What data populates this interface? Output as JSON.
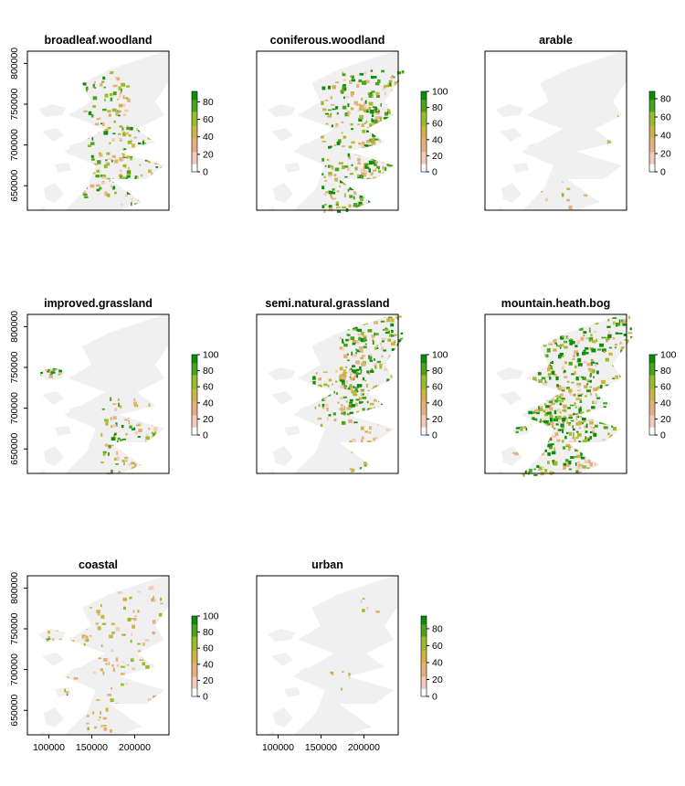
{
  "chart_data": {
    "type": "heatmap",
    "grid": false,
    "colors": {
      "land": "#f0f0f0",
      "scale": [
        "#ffffff",
        "#f2ccb8",
        "#e6b07a",
        "#cdb34a",
        "#9bbb2c",
        "#4aa31c",
        "#0f8c0a"
      ]
    },
    "x_ticks": [
      "100000",
      "150000",
      "200000"
    ],
    "y_ticks": [
      "650000",
      "700000",
      "750000",
      "800000"
    ],
    "xlim": [
      75000,
      240000
    ],
    "ylim": [
      620000,
      815000
    ],
    "panels": [
      {
        "title": "broadleaf.woodland",
        "legend_ticks": [
          "0",
          "20",
          "40",
          "60",
          "80"
        ],
        "legend_max": 92,
        "pattern": "broadleaf"
      },
      {
        "title": "coniferous.woodland",
        "legend_ticks": [
          "0",
          "20",
          "40",
          "60",
          "80",
          "100"
        ],
        "legend_max": 100,
        "pattern": "conifer"
      },
      {
        "title": "arable",
        "legend_ticks": [
          "0",
          "20",
          "40",
          "60",
          "80"
        ],
        "legend_max": 88,
        "pattern": "arable"
      },
      {
        "title": "improved.grassland",
        "legend_ticks": [
          "0",
          "20",
          "40",
          "60",
          "80",
          "100"
        ],
        "legend_max": 100,
        "pattern": "improved"
      },
      {
        "title": "semi.natural.grassland",
        "legend_ticks": [
          "0",
          "20",
          "40",
          "60",
          "80",
          "100"
        ],
        "legend_max": 100,
        "pattern": "seminat"
      },
      {
        "title": "mountain.heath.bog",
        "legend_ticks": [
          "0",
          "20",
          "40",
          "60",
          "80",
          "100"
        ],
        "legend_max": 100,
        "pattern": "mountain"
      },
      {
        "title": "coastal",
        "legend_ticks": [
          "0",
          "20",
          "40",
          "60",
          "80",
          "100"
        ],
        "legend_max": 100,
        "pattern": "coastal"
      },
      {
        "title": "urban",
        "legend_ticks": [
          "0",
          "20",
          "40",
          "60",
          "80"
        ],
        "legend_max": 95,
        "pattern": "urban"
      }
    ]
  }
}
